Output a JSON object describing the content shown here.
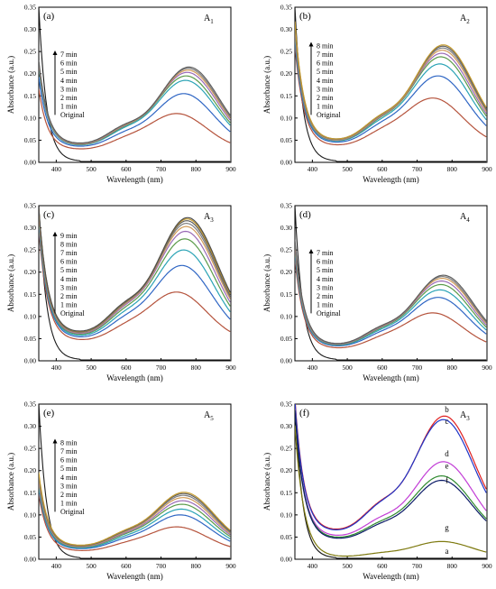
{
  "x_ticks": [
    "400",
    "500",
    "600",
    "700",
    "800",
    "900"
  ],
  "y_ticks": [
    "0.00",
    "0.05",
    "0.10",
    "0.15",
    "0.20",
    "0.25",
    "0.30",
    "0.35"
  ],
  "x_label": "Wavelength (nm)",
  "y_label": "Absorbance (a.u.)",
  "chart_data": [
    {
      "type": "line",
      "panel": "(a)",
      "sample": "A1",
      "xlim": [
        350,
        900
      ],
      "ylim": [
        0,
        0.35
      ],
      "xlabel": "Wavelength (nm)",
      "ylabel": "Absorbance (a.u.)",
      "legend": [
        "7 min",
        "6 min",
        "5 min",
        "4 min",
        "3 min",
        "2 min",
        "1 min",
        "Original"
      ],
      "legend_placement": "left",
      "series": [
        {
          "name": "Original",
          "peak_nm": 745,
          "peak": 0.11,
          "start": 0.155,
          "min": 0.035
        },
        {
          "name": "1 min",
          "peak_nm": 765,
          "peak": 0.155,
          "start": 0.18,
          "min": 0.042
        },
        {
          "name": "2 min",
          "peak_nm": 770,
          "peak": 0.185,
          "start": 0.2,
          "min": 0.045
        },
        {
          "name": "3 min",
          "peak_nm": 772,
          "peak": 0.195,
          "start": 0.205,
          "min": 0.046
        },
        {
          "name": "4 min",
          "peak_nm": 775,
          "peak": 0.203,
          "start": 0.208,
          "min": 0.047
        },
        {
          "name": "5 min",
          "peak_nm": 777,
          "peak": 0.208,
          "start": 0.21,
          "min": 0.048
        },
        {
          "name": "6 min",
          "peak_nm": 778,
          "peak": 0.212,
          "start": 0.212,
          "min": 0.049
        },
        {
          "name": "7 min",
          "peak_nm": 780,
          "peak": 0.215,
          "start": 0.215,
          "min": 0.05
        }
      ]
    },
    {
      "type": "line",
      "panel": "(b)",
      "sample": "A2",
      "xlim": [
        350,
        900
      ],
      "ylim": [
        0,
        0.35
      ],
      "xlabel": "Wavelength (nm)",
      "ylabel": "Absorbance (a.u.)",
      "legend": [
        "8 min",
        "7 min",
        "6 min",
        "5 min",
        "4 min",
        "3 min",
        "2 min",
        "1 min",
        "Original"
      ],
      "legend_placement": "left",
      "series": [
        {
          "name": "Original",
          "peak_nm": 745,
          "peak": 0.145,
          "start": 0.25,
          "min": 0.045
        },
        {
          "name": "1 min",
          "peak_nm": 760,
          "peak": 0.195,
          "start": 0.26,
          "min": 0.052
        },
        {
          "name": "2 min",
          "peak_nm": 765,
          "peak": 0.222,
          "start": 0.27,
          "min": 0.055
        },
        {
          "name": "3 min",
          "peak_nm": 768,
          "peak": 0.238,
          "start": 0.275,
          "min": 0.056
        },
        {
          "name": "4 min",
          "peak_nm": 770,
          "peak": 0.246,
          "start": 0.28,
          "min": 0.057
        },
        {
          "name": "5 min",
          "peak_nm": 772,
          "peak": 0.253,
          "start": 0.285,
          "min": 0.058
        },
        {
          "name": "6 min",
          "peak_nm": 773,
          "peak": 0.258,
          "start": 0.29,
          "min": 0.059
        },
        {
          "name": "7 min",
          "peak_nm": 774,
          "peak": 0.262,
          "start": 0.295,
          "min": 0.06
        },
        {
          "name": "8 min",
          "peak_nm": 775,
          "peak": 0.265,
          "start": 0.3,
          "min": 0.06
        }
      ]
    },
    {
      "type": "line",
      "panel": "(c)",
      "sample": "A3",
      "xlim": [
        350,
        900
      ],
      "ylim": [
        0,
        0.35
      ],
      "xlabel": "Wavelength (nm)",
      "ylabel": "Absorbance (a.u.)",
      "legend": [
        "9 min",
        "8 min",
        "7 min",
        "6 min",
        "5 min",
        "4 min",
        "3 min",
        "2 min",
        "1 min",
        "Original"
      ],
      "legend_placement": "left",
      "series": [
        {
          "name": "Original",
          "peak_nm": 745,
          "peak": 0.155,
          "start": 0.28,
          "min": 0.055
        },
        {
          "name": "1 min",
          "peak_nm": 760,
          "peak": 0.215,
          "start": 0.29,
          "min": 0.062
        },
        {
          "name": "2 min",
          "peak_nm": 765,
          "peak": 0.25,
          "start": 0.295,
          "min": 0.066
        },
        {
          "name": "3 min",
          "peak_nm": 768,
          "peak": 0.275,
          "start": 0.3,
          "min": 0.069
        },
        {
          "name": "4 min",
          "peak_nm": 770,
          "peak": 0.292,
          "start": 0.305,
          "min": 0.071
        },
        {
          "name": "5 min",
          "peak_nm": 772,
          "peak": 0.303,
          "start": 0.31,
          "min": 0.073
        },
        {
          "name": "6 min",
          "peak_nm": 773,
          "peak": 0.31,
          "start": 0.315,
          "min": 0.074
        },
        {
          "name": "7 min",
          "peak_nm": 774,
          "peak": 0.316,
          "start": 0.318,
          "min": 0.075
        },
        {
          "name": "8 min",
          "peak_nm": 775,
          "peak": 0.32,
          "start": 0.32,
          "min": 0.076
        },
        {
          "name": "9 min",
          "peak_nm": 776,
          "peak": 0.323,
          "start": 0.322,
          "min": 0.077
        }
      ]
    },
    {
      "type": "line",
      "panel": "(d)",
      "sample": "A4",
      "xlim": [
        350,
        900
      ],
      "ylim": [
        0,
        0.35
      ],
      "xlabel": "Wavelength (nm)",
      "ylabel": "Absorbance (a.u.)",
      "legend": [
        "7 min",
        "6 min",
        "5 min",
        "4 min",
        "3 min",
        "2 min",
        "1 min",
        "Original"
      ],
      "legend_placement": "left",
      "series": [
        {
          "name": "Original",
          "peak_nm": 745,
          "peak": 0.108,
          "start": 0.22,
          "min": 0.033
        },
        {
          "name": "1 min",
          "peak_nm": 760,
          "peak": 0.143,
          "start": 0.23,
          "min": 0.038
        },
        {
          "name": "2 min",
          "peak_nm": 765,
          "peak": 0.16,
          "start": 0.235,
          "min": 0.04
        },
        {
          "name": "3 min",
          "peak_nm": 768,
          "peak": 0.172,
          "start": 0.24,
          "min": 0.041
        },
        {
          "name": "4 min",
          "peak_nm": 770,
          "peak": 0.18,
          "start": 0.245,
          "min": 0.042
        },
        {
          "name": "5 min",
          "peak_nm": 772,
          "peak": 0.186,
          "start": 0.25,
          "min": 0.043
        },
        {
          "name": "6 min",
          "peak_nm": 773,
          "peak": 0.19,
          "start": 0.255,
          "min": 0.043
        },
        {
          "name": "7 min",
          "peak_nm": 775,
          "peak": 0.193,
          "start": 0.26,
          "min": 0.044
        }
      ]
    },
    {
      "type": "line",
      "panel": "(e)",
      "sample": "A5",
      "xlim": [
        350,
        900
      ],
      "ylim": [
        0,
        0.35
      ],
      "xlabel": "Wavelength (nm)",
      "ylabel": "Absorbance (a.u.)",
      "legend": [
        "8 min",
        "7 min",
        "6 min",
        "5 min",
        "4 min",
        "3 min",
        "2 min",
        "1 min",
        "Original"
      ],
      "legend_placement": "left",
      "series": [
        {
          "name": "Original",
          "peak_nm": 745,
          "peak": 0.073,
          "start": 0.14,
          "min": 0.022
        },
        {
          "name": "1 min",
          "peak_nm": 755,
          "peak": 0.1,
          "start": 0.15,
          "min": 0.027
        },
        {
          "name": "2 min",
          "peak_nm": 758,
          "peak": 0.113,
          "start": 0.155,
          "min": 0.029
        },
        {
          "name": "3 min",
          "peak_nm": 760,
          "peak": 0.124,
          "start": 0.16,
          "min": 0.031
        },
        {
          "name": "4 min",
          "peak_nm": 762,
          "peak": 0.132,
          "start": 0.165,
          "min": 0.032
        },
        {
          "name": "5 min",
          "peak_nm": 763,
          "peak": 0.139,
          "start": 0.17,
          "min": 0.033
        },
        {
          "name": "6 min",
          "peak_nm": 764,
          "peak": 0.144,
          "start": 0.175,
          "min": 0.034
        },
        {
          "name": "7 min",
          "peak_nm": 765,
          "peak": 0.148,
          "start": 0.18,
          "min": 0.035
        },
        {
          "name": "8 min",
          "peak_nm": 766,
          "peak": 0.151,
          "start": 0.185,
          "min": 0.036
        }
      ]
    },
    {
      "type": "line",
      "panel": "(f)",
      "sample": "A3",
      "xlim": [
        350,
        900
      ],
      "ylim": [
        0,
        0.35
      ],
      "xlabel": "Wavelength (nm)",
      "ylabel": "Absorbance (a.u.)",
      "curve_labels": [
        "b",
        "c",
        "d",
        "e",
        "f",
        "g",
        "a"
      ],
      "series": [
        {
          "name": "a",
          "color": "#1a1a1a",
          "flat": true
        },
        {
          "name": "b",
          "color": "#e02020",
          "peak_nm": 778,
          "peak": 0.323,
          "start": 0.34,
          "min": 0.078
        },
        {
          "name": "c",
          "color": "#1f35c8",
          "peak_nm": 775,
          "peak": 0.315,
          "start": 0.335,
          "min": 0.076
        },
        {
          "name": "d",
          "color": "#c23dd6",
          "peak_nm": 775,
          "peak": 0.22,
          "start": 0.32,
          "min": 0.062
        },
        {
          "name": "e",
          "color": "#2f8a2f",
          "peak_nm": 770,
          "peak": 0.188,
          "start": 0.32,
          "min": 0.057
        },
        {
          "name": "f",
          "color": "#0a1a66",
          "peak_nm": 770,
          "peak": 0.178,
          "start": 0.32,
          "min": 0.054
        },
        {
          "name": "g",
          "color": "#7e7a10",
          "peak_nm": 770,
          "peak": 0.04,
          "start": 0.3,
          "min": 0.006
        }
      ]
    }
  ],
  "panel_colors": [
    "#b5533c",
    "#2f66c4",
    "#2aa3b5",
    "#5b9b4a",
    "#9a6ab6",
    "#d19a57",
    "#7d7d7d",
    "#5e5e5e",
    "#c49a2c",
    "#4e4e4e"
  ]
}
